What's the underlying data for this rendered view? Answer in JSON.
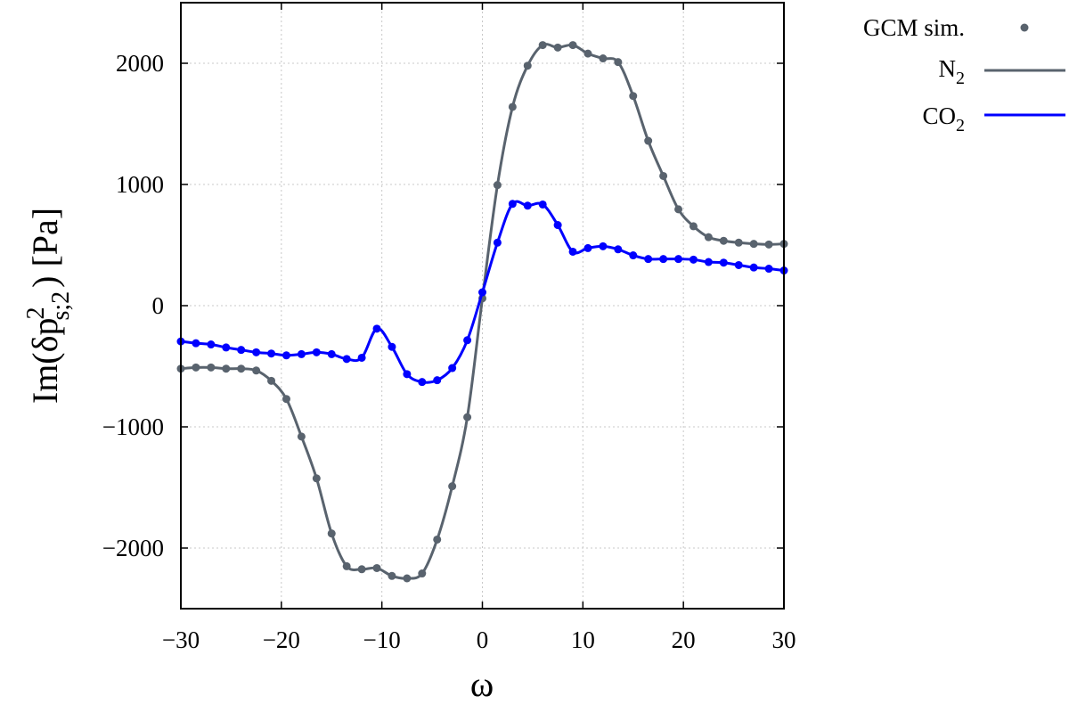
{
  "chart_data": {
    "type": "line",
    "xlabel": "ω",
    "ylabel": {
      "prefix": "Im(δp",
      "superscript": "2",
      "subscript": "s;2",
      "suffix": ") [Pa]"
    },
    "xlim": [
      -30,
      30
    ],
    "ylim": [
      -2500,
      2500
    ],
    "xticks": [
      -30,
      -20,
      -10,
      0,
      10,
      20,
      30
    ],
    "yticks": [
      -2000,
      -1000,
      0,
      1000,
      2000
    ],
    "xtick_labels": [
      "−30",
      "−20",
      "−10",
      "0",
      "10",
      "20",
      "30"
    ],
    "ytick_labels": [
      "−2000",
      "−1000",
      "0",
      "1000",
      "2000"
    ],
    "grid": true,
    "legend_placement": "outside-top-right",
    "legend": [
      {
        "label": "GCM sim.",
        "marker": "dot"
      },
      {
        "label_main": "N",
        "label_sub": "2",
        "line": "N2"
      },
      {
        "label_main": "CO",
        "label_sub": "2",
        "line": "CO2"
      }
    ],
    "series": [
      {
        "id": "N2",
        "color": "#59636e",
        "x": [
          -30,
          -28.5,
          -27,
          -25.5,
          -24,
          -22.5,
          -21,
          -19.5,
          -18,
          -16.5,
          -15,
          -13.5,
          -12,
          -10.5,
          -9,
          -7.5,
          -6,
          -4.5,
          -3,
          -1.5,
          0,
          1.5,
          3,
          4.5,
          6,
          7.5,
          9,
          10.5,
          12,
          13.5,
          15,
          16.5,
          18,
          19.5,
          21,
          22.5,
          24,
          25.5,
          27,
          28.5,
          30
        ],
        "y": [
          -520,
          -510,
          -510,
          -520,
          -520,
          -535,
          -620,
          -770,
          -1080,
          -1425,
          -1880,
          -2150,
          -2175,
          -2165,
          -2230,
          -2250,
          -2210,
          -1930,
          -1490,
          -920,
          60,
          995,
          1640,
          1980,
          2150,
          2130,
          2150,
          2080,
          2040,
          2010,
          1730,
          1360,
          1070,
          795,
          655,
          565,
          535,
          520,
          510,
          505,
          510
        ]
      },
      {
        "id": "CO2",
        "color": "#0000ff",
        "x": [
          -30,
          -28.5,
          -27,
          -25.5,
          -24,
          -22.5,
          -21,
          -19.5,
          -18,
          -16.5,
          -15,
          -13.5,
          -12,
          -10.5,
          -9,
          -7.5,
          -6,
          -4.5,
          -3,
          -1.5,
          0,
          1.5,
          3,
          4.5,
          6,
          7.5,
          9,
          10.5,
          12,
          13.5,
          15,
          16.5,
          18,
          19.5,
          21,
          22.5,
          24,
          25.5,
          27,
          28.5,
          30
        ],
        "y": [
          -295,
          -310,
          -320,
          -345,
          -365,
          -385,
          -395,
          -410,
          -400,
          -385,
          -400,
          -440,
          -430,
          -190,
          -340,
          -565,
          -630,
          -615,
          -515,
          -285,
          110,
          520,
          840,
          825,
          835,
          665,
          445,
          475,
          490,
          465,
          415,
          385,
          385,
          385,
          380,
          360,
          355,
          335,
          315,
          305,
          290
        ]
      }
    ]
  }
}
